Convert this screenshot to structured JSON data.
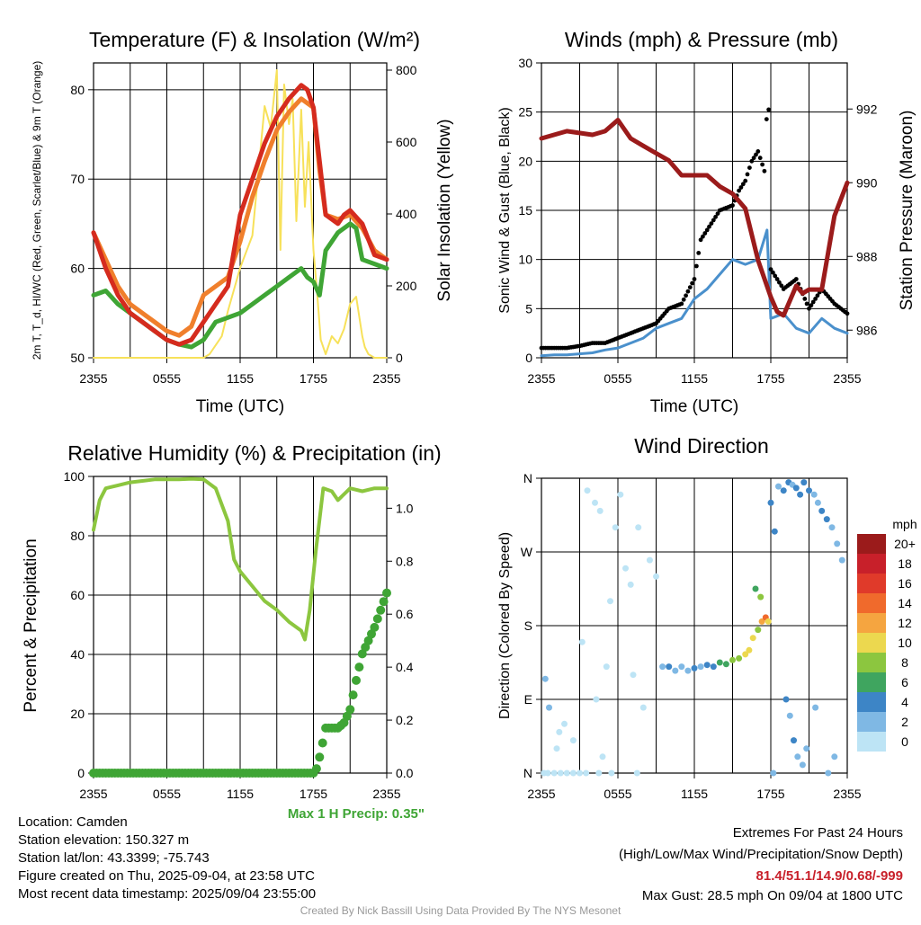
{
  "chart_data": [
    {
      "type": "line",
      "title": "Temperature (F) & Insolation (W/m²)",
      "xlabel": "Time (UTC)",
      "ylabel": "2m T, T_d, HI/WC (Red, Green, Scarlet/Blue) & 9m T (Orange)",
      "y2label": "Solar Insolation (Yellow)",
      "x_ticks": [
        "2355",
        "0555",
        "1155",
        "1755",
        "2355"
      ],
      "ylim": [
        50,
        83
      ],
      "y_ticks": [
        50,
        60,
        70,
        80
      ],
      "y2lim": [
        0,
        820
      ],
      "y2_ticks": [
        0,
        200,
        400,
        600,
        800
      ],
      "grid": true,
      "colors": {
        "temp": "#d52b1e",
        "dewpoint": "#3fa535",
        "temp9m": "#f07f2c",
        "heatindex": "#b0191e",
        "solar": "#f7e15a"
      },
      "series": [
        {
          "x": [
            0,
            1,
            2,
            3,
            4,
            5,
            6,
            7,
            8,
            9,
            10,
            11,
            11.5,
            12,
            13,
            14,
            15,
            16,
            17,
            17.5,
            18,
            18.5,
            19,
            20,
            20.5,
            21,
            22,
            23,
            24
          ],
          "values": [
            64,
            60,
            57,
            55,
            54,
            53,
            52,
            51.5,
            52,
            54,
            56,
            58,
            62,
            66,
            70,
            74,
            77,
            79,
            80.5,
            80,
            78,
            72,
            66,
            65,
            66,
            66.5,
            65,
            61.5,
            61
          ]
        },
        {
          "x": [
            0,
            1,
            2,
            3,
            4,
            5,
            6,
            7,
            8,
            9,
            10,
            11,
            12,
            13,
            14,
            15,
            16,
            17,
            17.5,
            18,
            18.5,
            19,
            20,
            21,
            21.5,
            22,
            23,
            24
          ],
          "values": [
            57,
            57.5,
            56,
            55,
            54,
            53,
            52,
            51.5,
            51.2,
            52,
            54,
            54.5,
            55,
            56,
            57,
            58,
            59,
            60,
            59,
            58.5,
            57,
            62,
            64,
            65,
            64.5,
            61,
            60.5,
            60
          ]
        },
        {
          "x": [
            0,
            1,
            2,
            3,
            4,
            5,
            6,
            7,
            8,
            9,
            10,
            11,
            12,
            13,
            14,
            15,
            16,
            17,
            18,
            18.5,
            19,
            20,
            21,
            22,
            23,
            24
          ],
          "values": [
            64,
            61,
            58,
            56,
            55,
            54,
            53,
            52.5,
            53.5,
            57,
            58,
            59,
            63,
            68,
            72,
            75.5,
            77.5,
            79,
            78,
            71,
            66,
            65.5,
            66,
            64.5,
            62,
            61
          ]
        },
        {
          "x": [
            0,
            9,
            9.5,
            10.5,
            11,
            12,
            13,
            13.5,
            14,
            14.5,
            15,
            15.3,
            15.6,
            16,
            16.3,
            16.6,
            17,
            17.3,
            17.6,
            18,
            18.3,
            18.6,
            19,
            19.5,
            20,
            20.5,
            21,
            21.5,
            22,
            22.2,
            22.5,
            23,
            24
          ],
          "values": [
            0,
            0,
            10,
            60,
            130,
            250,
            340,
            520,
            700,
            640,
            800,
            300,
            760,
            650,
            720,
            380,
            690,
            420,
            600,
            300,
            180,
            50,
            10,
            60,
            40,
            80,
            150,
            170,
            60,
            30,
            10,
            0,
            0
          ]
        }
      ]
    },
    {
      "type": "line",
      "title": "Winds (mph) & Pressure (mb)",
      "xlabel": "Time (UTC)",
      "ylabel": "Sonic Wind & Gust (Blue, Black)",
      "y2label": "Station Pressure (Maroon)",
      "x_ticks": [
        "2355",
        "0555",
        "1155",
        "1755",
        "2355"
      ],
      "ylim": [
        0,
        30
      ],
      "y_ticks": [
        0,
        5,
        10,
        15,
        20,
        25,
        30
      ],
      "y2lim": [
        985.25,
        993.25
      ],
      "y2_ticks": [
        986,
        988,
        990,
        992
      ],
      "grid": true,
      "colors": {
        "wind": "#4a90cc",
        "gust": "#000000",
        "pressure": "#9b1b1b"
      },
      "series": [
        {
          "x": [
            0,
            1,
            2,
            3,
            4,
            5,
            6,
            7,
            8,
            9,
            10,
            11,
            12,
            13,
            14,
            15,
            16,
            17,
            17.7,
            18,
            19,
            20,
            21,
            22,
            23,
            24
          ],
          "values": [
            0.2,
            0.3,
            0.3,
            0.4,
            0.5,
            0.8,
            1.0,
            1.5,
            2.0,
            3.0,
            3.5,
            4.0,
            6.0,
            7.0,
            8.5,
            10.0,
            9.5,
            10.0,
            13.0,
            4.0,
            4.5,
            3.0,
            2.5,
            4.0,
            3.0,
            2.5
          ]
        },
        {
          "x": [
            0,
            1,
            2,
            3,
            4,
            5,
            6,
            7,
            8,
            9,
            10,
            11,
            12,
            12.5,
            13,
            14,
            15,
            15.5,
            16,
            16.5,
            17,
            17.5,
            17.8,
            18,
            19,
            20,
            21,
            22,
            23,
            24
          ],
          "values": [
            1.0,
            1.0,
            1.0,
            1.2,
            1.5,
            1.5,
            2.0,
            2.5,
            3.0,
            3.5,
            5.0,
            5.5,
            8.0,
            12.0,
            13.0,
            15.0,
            15.5,
            17.0,
            18.0,
            20.0,
            21.0,
            19.0,
            28.5,
            9.0,
            7.0,
            8.0,
            5.0,
            7.0,
            5.5,
            4.5
          ]
        },
        {
          "axis": "right",
          "x": [
            0,
            2,
            4,
            5,
            6,
            7,
            8,
            9,
            10,
            11,
            12,
            13,
            14,
            15,
            16,
            17,
            18,
            18.5,
            19,
            20,
            20.5,
            21,
            22,
            23,
            24
          ],
          "values": [
            991.2,
            991.4,
            991.3,
            991.4,
            991.7,
            991.2,
            991.0,
            990.8,
            990.6,
            990.2,
            990.2,
            990.2,
            989.9,
            989.7,
            989.3,
            987.9,
            986.9,
            986.5,
            986.4,
            987.2,
            987.0,
            987.1,
            987.1,
            989.1,
            990.0
          ]
        }
      ],
      "gust_max": 28.5
    },
    {
      "type": "line",
      "title": "Relative Humidity (%) & Precipitation (in)",
      "ylabel": "Percent & Precipitation",
      "x_ticks": [
        "2355",
        "0555",
        "1155",
        "1755",
        "2355"
      ],
      "ylim": [
        0,
        100
      ],
      "y_ticks": [
        0,
        20,
        40,
        60,
        80,
        100
      ],
      "y2lim": [
        0,
        1.12
      ],
      "y2_ticks": [
        "0.0",
        "0.2",
        "0.4",
        "0.6",
        "0.8",
        "1.0"
      ],
      "grid": true,
      "colors": {
        "rh": "#8cc63f",
        "precip": "#3fa535"
      },
      "series": [
        {
          "x": [
            0,
            0.5,
            1,
            2,
            3,
            4,
            5,
            6,
            7,
            8,
            9,
            10,
            11,
            11.5,
            12,
            13,
            14,
            15,
            16,
            17,
            17.3,
            17.7,
            18.2,
            18.8,
            19.5,
            20,
            21,
            22,
            23,
            24
          ],
          "values": [
            82,
            92,
            96,
            97,
            98,
            98.5,
            99,
            99,
            99,
            99.2,
            99,
            96,
            85,
            72,
            68,
            63,
            58,
            55,
            51,
            48,
            45,
            55,
            75,
            96,
            95,
            92,
            96,
            95,
            96,
            96
          ]
        },
        {
          "axis": "right",
          "x": [
            0,
            18,
            18.3,
            18.6,
            19,
            20,
            20.5,
            21,
            21.5,
            22,
            23,
            24
          ],
          "values": [
            0,
            0,
            0.02,
            0.08,
            0.17,
            0.17,
            0.19,
            0.24,
            0.35,
            0.45,
            0.55,
            0.68
          ]
        }
      ],
      "annotation": "Max 1 H Precip: 0.35\""
    },
    {
      "type": "scatter",
      "title": "Wind Direction",
      "ylabel": "Direction (Colored By Speed)",
      "x_ticks": [
        "2355",
        "0555",
        "1155",
        "1755",
        "2355"
      ],
      "y_ticks": [
        "N",
        "E",
        "S",
        "W",
        "N"
      ],
      "ylim": [
        0,
        360
      ],
      "grid": true,
      "colorbar": {
        "title": "mph",
        "labels": [
          "20+",
          "18",
          "16",
          "14",
          "12",
          "10",
          "8",
          "6",
          "4",
          "2",
          "0"
        ],
        "colors": [
          "#9b1b1b",
          "#c8202a",
          "#e03a2a",
          "#f06a2c",
          "#f5a540",
          "#ecd84f",
          "#8cc63f",
          "#3fa55f",
          "#3d85c6",
          "#7fb8e4",
          "#bde4f5"
        ]
      },
      "points": [
        {
          "x": 0.2,
          "dir": 0,
          "speed": 0.5
        },
        {
          "x": 0.5,
          "dir": 0,
          "speed": 0.5
        },
        {
          "x": 1.0,
          "dir": 0,
          "speed": 0.5
        },
        {
          "x": 1.5,
          "dir": 0,
          "speed": 0.5
        },
        {
          "x": 2.0,
          "dir": 0,
          "speed": 0.5
        },
        {
          "x": 2.5,
          "dir": 0,
          "speed": 0.5
        },
        {
          "x": 3.0,
          "dir": 0,
          "speed": 0.5
        },
        {
          "x": 3.5,
          "dir": 0,
          "speed": 0.5
        },
        {
          "x": 4.5,
          "dir": 0,
          "speed": 0.5
        },
        {
          "x": 5.5,
          "dir": 0,
          "speed": 0.5
        },
        {
          "x": 7.5,
          "dir": 0,
          "speed": 0.5
        },
        {
          "x": 18.2,
          "dir": 0,
          "speed": 1.0
        },
        {
          "x": 0.3,
          "dir": 115,
          "speed": 1.0
        },
        {
          "x": 0.6,
          "dir": 80,
          "speed": 1.0
        },
        {
          "x": 1.2,
          "dir": 30,
          "speed": 0.5
        },
        {
          "x": 1.4,
          "dir": 50,
          "speed": 0.5
        },
        {
          "x": 1.8,
          "dir": 60,
          "speed": 0.5
        },
        {
          "x": 2.5,
          "dir": 40,
          "speed": 0.5
        },
        {
          "x": 3.2,
          "dir": 160,
          "speed": 0.5
        },
        {
          "x": 3.6,
          "dir": 345,
          "speed": 0.5
        },
        {
          "x": 4.2,
          "dir": 330,
          "speed": 0.5
        },
        {
          "x": 4.6,
          "dir": 320,
          "speed": 0.5
        },
        {
          "x": 4.3,
          "dir": 90,
          "speed": 0.5
        },
        {
          "x": 4.8,
          "dir": 20,
          "speed": 0.5
        },
        {
          "x": 5.1,
          "dir": 130,
          "speed": 0.5
        },
        {
          "x": 5.4,
          "dir": 210,
          "speed": 0.5
        },
        {
          "x": 5.8,
          "dir": 300,
          "speed": 0.5
        },
        {
          "x": 6.2,
          "dir": 340,
          "speed": 0.5
        },
        {
          "x": 6.6,
          "dir": 250,
          "speed": 0.5
        },
        {
          "x": 7.0,
          "dir": 230,
          "speed": 0.5
        },
        {
          "x": 7.2,
          "dir": 120,
          "speed": 0.5
        },
        {
          "x": 7.6,
          "dir": 300,
          "speed": 0.5
        },
        {
          "x": 8.0,
          "dir": 80,
          "speed": 0.5
        },
        {
          "x": 8.5,
          "dir": 260,
          "speed": 0.5
        },
        {
          "x": 9.0,
          "dir": 240,
          "speed": 0.5
        },
        {
          "x": 9.5,
          "dir": 130,
          "speed": 1.0
        },
        {
          "x": 10.0,
          "dir": 130,
          "speed": 3.0
        },
        {
          "x": 10.5,
          "dir": 125,
          "speed": 2.0
        },
        {
          "x": 11.0,
          "dir": 130,
          "speed": 2.0
        },
        {
          "x": 11.5,
          "dir": 125,
          "speed": 2.0
        },
        {
          "x": 12.0,
          "dir": 128,
          "speed": 3.0
        },
        {
          "x": 12.5,
          "dir": 130,
          "speed": 2.0
        },
        {
          "x": 13.0,
          "dir": 132,
          "speed": 3.0
        },
        {
          "x": 13.5,
          "dir": 130,
          "speed": 4.0
        },
        {
          "x": 14.0,
          "dir": 135,
          "speed": 6.0
        },
        {
          "x": 14.5,
          "dir": 133,
          "speed": 5.0
        },
        {
          "x": 15.0,
          "dir": 138,
          "speed": 7.0
        },
        {
          "x": 15.5,
          "dir": 140,
          "speed": 8.0
        },
        {
          "x": 16.0,
          "dir": 145,
          "speed": 10.0
        },
        {
          "x": 16.3,
          "dir": 150,
          "speed": 9.0
        },
        {
          "x": 16.6,
          "dir": 165,
          "speed": 9.0
        },
        {
          "x": 17.0,
          "dir": 175,
          "speed": 7.0
        },
        {
          "x": 17.3,
          "dir": 185,
          "speed": 12.0
        },
        {
          "x": 17.6,
          "dir": 190,
          "speed": 14.0
        },
        {
          "x": 17.8,
          "dir": 185,
          "speed": 10.0
        },
        {
          "x": 17.2,
          "dir": 215,
          "speed": 7.0
        },
        {
          "x": 16.8,
          "dir": 225,
          "speed": 6.0
        },
        {
          "x": 18.0,
          "dir": 330,
          "speed": 3.0
        },
        {
          "x": 18.3,
          "dir": 295,
          "speed": 4.0
        },
        {
          "x": 18.6,
          "dir": 350,
          "speed": 1.0
        },
        {
          "x": 19.0,
          "dir": 345,
          "speed": 3.0
        },
        {
          "x": 19.4,
          "dir": 355,
          "speed": 4.0
        },
        {
          "x": 19.7,
          "dir": 352,
          "speed": 2.0
        },
        {
          "x": 20.0,
          "dir": 348,
          "speed": 3.0
        },
        {
          "x": 20.3,
          "dir": 340,
          "speed": 4.0
        },
        {
          "x": 20.6,
          "dir": 355,
          "speed": 3.0
        },
        {
          "x": 21.0,
          "dir": 345,
          "speed": 4.0
        },
        {
          "x": 21.4,
          "dir": 340,
          "speed": 2.0
        },
        {
          "x": 21.7,
          "dir": 330,
          "speed": 1.0
        },
        {
          "x": 22.0,
          "dir": 320,
          "speed": 3.0
        },
        {
          "x": 22.4,
          "dir": 310,
          "speed": 4.0
        },
        {
          "x": 22.8,
          "dir": 300,
          "speed": 1.0
        },
        {
          "x": 23.2,
          "dir": 280,
          "speed": 1.0
        },
        {
          "x": 23.6,
          "dir": 260,
          "speed": 1.0
        },
        {
          "x": 19.2,
          "dir": 90,
          "speed": 3.0
        },
        {
          "x": 19.5,
          "dir": 70,
          "speed": 2.0
        },
        {
          "x": 19.8,
          "dir": 40,
          "speed": 3.0
        },
        {
          "x": 20.1,
          "dir": 20,
          "speed": 1.0
        },
        {
          "x": 20.5,
          "dir": 10,
          "speed": 2.0
        },
        {
          "x": 20.8,
          "dir": 30,
          "speed": 1.0
        },
        {
          "x": 21.5,
          "dir": 80,
          "speed": 1.0
        },
        {
          "x": 22.5,
          "dir": 0,
          "speed": 1.0
        },
        {
          "x": 23.0,
          "dir": 20,
          "speed": 1.0
        }
      ]
    }
  ],
  "info": {
    "location": "Location: Camden",
    "elevation": "Station elevation: 150.327 m",
    "latlon": "Station lat/lon: 43.3399; -75.743",
    "created": "Figure created on Thu, 2025-09-04, at 23:58 UTC",
    "recent": "Most recent data timestamp: 2025/09/04 23:55:00"
  },
  "extremes": {
    "title": "Extremes For Past 24 Hours",
    "subtitle": "(High/Low/Max Wind/Precipitation/Snow Depth)",
    "values": "81.4/51.1/14.9/0.68/-999",
    "values_color": "#c8202a",
    "gust": "Max Gust: 28.5 mph On 09/04 at 1800 UTC"
  },
  "credit": "Created By Nick Bassill Using Data Provided By The NYS Mesonet"
}
